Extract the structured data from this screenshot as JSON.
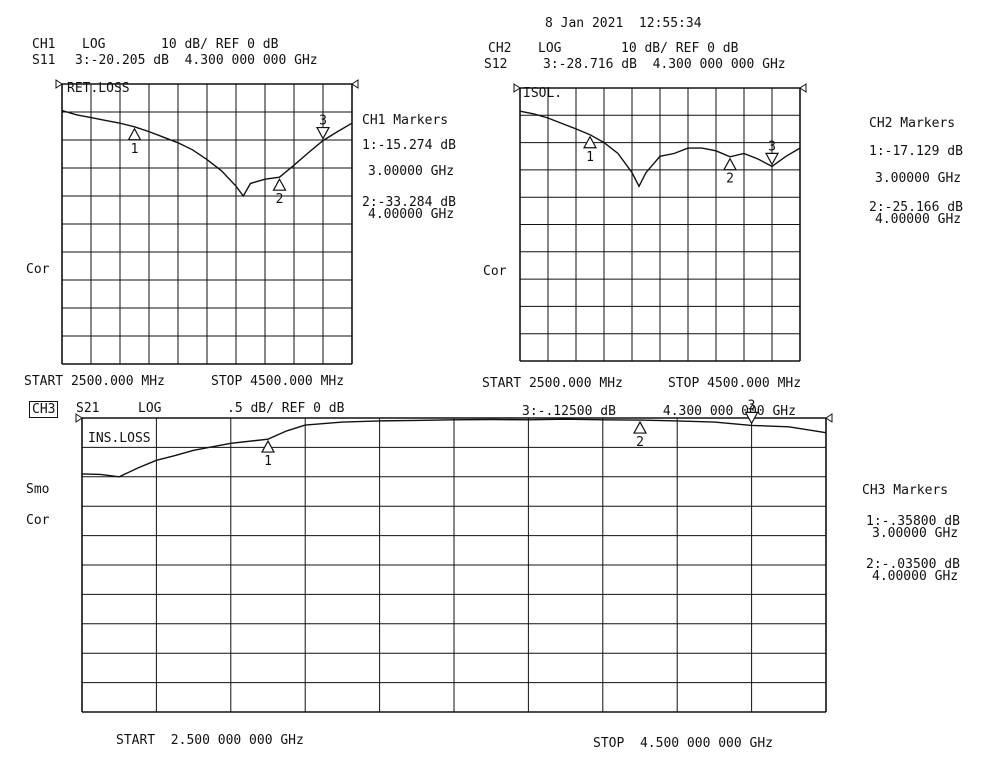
{
  "timestamp": "8 Jan 2021  12:55:34",
  "charts": [
    {
      "id": "ch1",
      "header": {
        "ch": "CH1",
        "format": "LOG",
        "scale": "10 dB/ REF 0 dB",
        "param": "S11",
        "marker_readout": "3:-20.205 dB  4.300 000 000 GHz"
      },
      "trace_label": "RET.LOSS",
      "side_label": "Cor",
      "markers_title": "CH1 Markers",
      "marker_lines": [
        "1:-15.274 dB",
        "3.00000 GHz",
        "2:-33.284 dB",
        "4.00000 GHz"
      ],
      "marker_labels": [
        "1",
        "2",
        "3"
      ],
      "start_label": "START 2500.000 MHz",
      "stop_label": "STOP 4500.000 MHz"
    },
    {
      "id": "ch2",
      "header": {
        "ch": "CH2",
        "format": "LOG",
        "scale": "10 dB/ REF 0 dB",
        "param": "S12",
        "marker_readout": "3:-28.716 dB  4.300 000 000 GHz"
      },
      "trace_label": "ISOL.",
      "side_label": "Cor",
      "markers_title": "CH2 Markers",
      "marker_lines": [
        "1:-17.129 dB",
        "3.00000 GHz",
        "2:-25.166 dB",
        "4.00000 GHz"
      ],
      "marker_labels": [
        "1",
        "2",
        "3"
      ],
      "start_label": "START 2500.000 MHz",
      "stop_label": "STOP 4500.000 MHz"
    },
    {
      "id": "ch3",
      "header": {
        "ch": "CH3",
        "param": "S21",
        "format": "LOG",
        "scale": ".5 dB/ REF 0 dB",
        "marker_readout": "3:-.12500 dB      4.300 000 000 GHz"
      },
      "trace_label": "INS.LOSS",
      "side_labels": [
        "Smo",
        "Cor"
      ],
      "markers_title": "CH3 Markers",
      "marker_lines": [
        "1:-.35800 dB",
        "3.00000 GHz",
        "2:-.03500 dB",
        "4.00000 GHz"
      ],
      "marker_labels": [
        "1",
        "2",
        "3"
      ],
      "start_label": "START  2.500 000 000 GHz",
      "stop_label": "STOP  4.500 000 000 GHz"
    }
  ],
  "chart_data": [
    {
      "type": "line",
      "title": "RET.LOSS",
      "xlim": [
        2.5,
        4.5
      ],
      "ylim": [
        -100,
        0
      ],
      "grid": true,
      "series": [
        {
          "name": "S11",
          "x": [
            2.5,
            2.6,
            2.7,
            2.8,
            2.9,
            3.0,
            3.1,
            3.2,
            3.3,
            3.4,
            3.5,
            3.6,
            3.7,
            3.75,
            3.8,
            3.9,
            4.0,
            4.1,
            4.2,
            4.3,
            4.4,
            4.5
          ],
          "y": [
            -9.5,
            -11,
            -12,
            -13,
            -14,
            -15.3,
            -17,
            -19,
            -21,
            -23.5,
            -27,
            -31,
            -36.5,
            -40,
            -35.5,
            -34,
            -33.3,
            -29,
            -24.5,
            -20.2,
            -17,
            -14
          ]
        }
      ],
      "markers": [
        {
          "label": "1",
          "x": 3.0,
          "y": -15.274
        },
        {
          "label": "2",
          "x": 4.0,
          "y": -33.284
        },
        {
          "label": "3",
          "x": 4.3,
          "y": -20.205
        }
      ]
    },
    {
      "type": "line",
      "title": "ISOL.",
      "xlim": [
        2.5,
        4.5
      ],
      "ylim": [
        -100,
        0
      ],
      "grid": true,
      "series": [
        {
          "name": "S12",
          "x": [
            2.5,
            2.6,
            2.7,
            2.8,
            2.9,
            3.0,
            3.1,
            3.2,
            3.3,
            3.35,
            3.4,
            3.5,
            3.6,
            3.7,
            3.8,
            3.9,
            4.0,
            4.1,
            4.2,
            4.3,
            4.4,
            4.5
          ],
          "y": [
            -8.5,
            -9.5,
            -11,
            -13,
            -15,
            -17.1,
            -20,
            -24,
            -31,
            -36,
            -31,
            -25,
            -24,
            -22,
            -22,
            -23,
            -25.2,
            -24,
            -26,
            -28.7,
            -25,
            -22
          ]
        }
      ],
      "markers": [
        {
          "label": "1",
          "x": 3.0,
          "y": -17.129
        },
        {
          "label": "2",
          "x": 4.0,
          "y": -25.166
        },
        {
          "label": "3",
          "x": 4.3,
          "y": -28.716
        }
      ]
    },
    {
      "type": "line",
      "title": "INS.LOSS",
      "xlim": [
        2.5,
        4.5
      ],
      "ylim": [
        -5,
        0
      ],
      "grid": true,
      "series": [
        {
          "name": "S21",
          "x": [
            2.5,
            2.55,
            2.6,
            2.65,
            2.7,
            2.75,
            2.8,
            2.9,
            3.0,
            3.05,
            3.1,
            3.2,
            3.3,
            3.4,
            3.5,
            3.6,
            3.7,
            3.8,
            3.9,
            4.0,
            4.1,
            4.2,
            4.3,
            4.4,
            4.5
          ],
          "y": [
            -0.95,
            -0.96,
            -1.0,
            -0.85,
            -0.72,
            -0.64,
            -0.55,
            -0.43,
            -0.36,
            -0.22,
            -0.12,
            -0.07,
            -0.05,
            -0.04,
            -0.03,
            -0.025,
            -0.03,
            -0.02,
            -0.03,
            -0.035,
            -0.05,
            -0.07,
            -0.125,
            -0.15,
            -0.25
          ]
        }
      ],
      "markers": [
        {
          "label": "1",
          "x": 3.0,
          "y": -0.358
        },
        {
          "label": "2",
          "x": 4.0,
          "y": -0.035
        },
        {
          "label": "3",
          "x": 4.3,
          "y": -0.125
        }
      ]
    }
  ]
}
